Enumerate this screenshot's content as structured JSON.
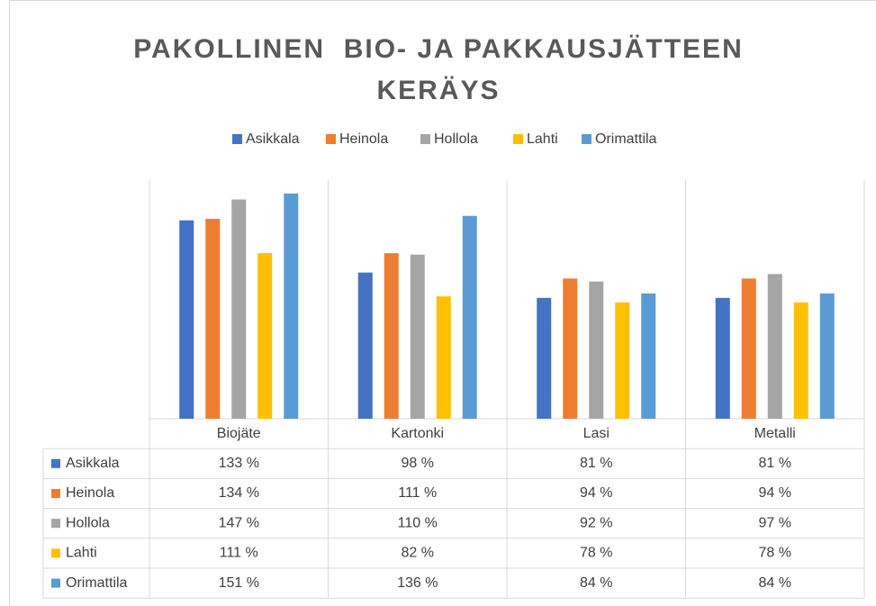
{
  "chart_data": {
    "type": "bar",
    "title": "PAKOLLINEN  BIO- JA PAKKAUSJÄTTEEN KERÄYS",
    "categories": [
      "Biojäte",
      "Kartonki",
      "Lasi",
      "Metalli"
    ],
    "series": [
      {
        "name": "Asikkala",
        "color": "#4472c4",
        "values": [
          133,
          98,
          81,
          81
        ],
        "value_labels": [
          "133 %",
          "98 %",
          "81 %",
          "81 %"
        ]
      },
      {
        "name": "Heinola",
        "color": "#ed7d31",
        "values": [
          134,
          111,
          94,
          94
        ],
        "value_labels": [
          "134 %",
          "111 %",
          "94 %",
          "94 %"
        ]
      },
      {
        "name": "Hollola",
        "color": "#a5a5a5",
        "values": [
          147,
          110,
          92,
          97
        ],
        "value_labels": [
          "147 %",
          "110 %",
          "92 %",
          "97 %"
        ]
      },
      {
        "name": "Lahti",
        "color": "#ffc000",
        "values": [
          111,
          82,
          78,
          78
        ],
        "value_labels": [
          "111 %",
          "82 %",
          "78 %",
          "78 %"
        ]
      },
      {
        "name": "Orimattila",
        "color": "#5b9bd5",
        "values": [
          151,
          136,
          84,
          84
        ],
        "value_labels": [
          "151 %",
          "136 %",
          "84 %",
          "84 %"
        ]
      }
    ],
    "ylim": [
      0,
      160
    ],
    "legend": "top"
  }
}
